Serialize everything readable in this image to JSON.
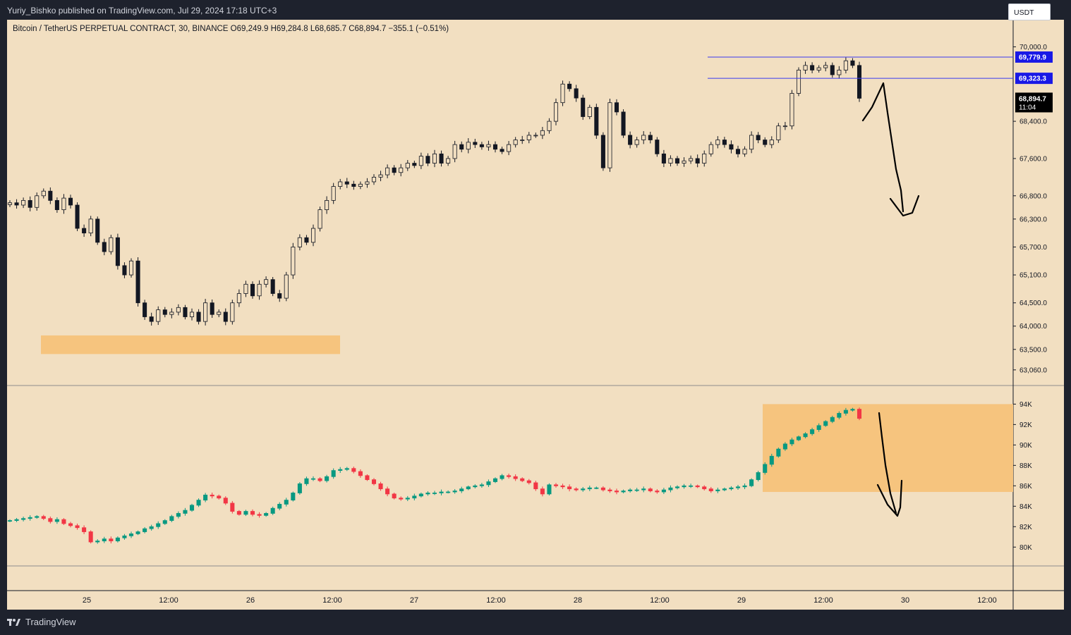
{
  "header": {
    "published": "Yuriy_Bishko published on TradingView.com, Jul 29, 2024 17:18 UTC+3",
    "symbol_info": "Bitcoin / TetherUS PERPETUAL CONTRACT, 30, BINANCE  O69,249.9  H69,284.8  L68,685.7  C68,894.7  −355.1 (−0.51%)"
  },
  "currency_button": "USDT",
  "footer": {
    "brand": "TradingView"
  },
  "colors": {
    "up": "#089981",
    "down": "#f23645",
    "price_body": "#131722",
    "zone": "#f6c47e",
    "hline": "#3a3af0",
    "bg": "#f2dfc1"
  },
  "chart_data": [
    {
      "type": "candlestick",
      "ylim": [
        62800,
        70400
      ],
      "y_ticks": [
        "70,000.0",
        "68,400.0",
        "67,600.0",
        "66,800.0",
        "66,300.0",
        "65,700.0",
        "65,100.0",
        "64,500.0",
        "64,000.0",
        "63,500.0",
        "63,060.0"
      ],
      "x_ticks": [
        "25",
        "12:00",
        "26",
        "12:00",
        "27",
        "12:00",
        "28",
        "12:00",
        "29",
        "12:00",
        "30",
        "12:00"
      ],
      "series": [
        {
          "values": [
            66650,
            66600,
            66700,
            66550,
            66800,
            66900,
            66700,
            66500,
            66750,
            66600,
            66100,
            66000,
            66300,
            65800,
            65600,
            65900,
            65300,
            65100,
            65400,
            64500,
            64200,
            64100,
            64350,
            64250,
            64300,
            64400,
            64200,
            64300,
            64100,
            64500,
            64250,
            64300,
            64100,
            64500,
            64700,
            64900,
            64650,
            64900,
            65000,
            64700,
            64600,
            65100,
            65700,
            65900,
            65800,
            66100,
            66500,
            66700,
            67000,
            67100,
            67050,
            67000,
            67050,
            67100,
            67200,
            67250,
            67400,
            67300,
            67400,
            67500,
            67450,
            67650,
            67500,
            67700,
            67500,
            67600,
            67900,
            67800,
            67950,
            67900,
            67850,
            67900,
            67800,
            67750,
            67900,
            68000,
            68000,
            68100,
            68100,
            68200,
            68400,
            68800,
            69200,
            69100,
            68900,
            68500,
            68700,
            68100,
            67400,
            68800,
            68600,
            68100,
            67900,
            68000,
            68100,
            68000,
            67700,
            67500,
            67600,
            67500,
            67550,
            67600,
            67500,
            67700,
            67900,
            68000,
            67900,
            67800,
            67700,
            67800,
            68100,
            68000,
            67900,
            68000,
            68300,
            68300,
            69000,
            69500,
            69600,
            69500,
            69550,
            69600,
            69400,
            69500,
            69700,
            69600,
            68894.7
          ]
        }
      ],
      "price_labels": [
        {
          "text": "69,779.9",
          "value": 69779.9
        },
        {
          "text": "69,323.3",
          "value": 69323.3
        }
      ],
      "last_price": {
        "text": "68,894.7",
        "countdown": "11:04",
        "value": 68894.7
      },
      "zone": {
        "from": 63400,
        "to": 63800
      }
    },
    {
      "type": "candlestick",
      "ylim": [
        78500,
        95200
      ],
      "y_ticks": [
        "94K",
        "92K",
        "90K",
        "88K",
        "86K",
        "84K",
        "82K",
        "80K"
      ],
      "series": [
        {
          "values": [
            82600,
            82700,
            82800,
            82900,
            83000,
            82800,
            82500,
            82700,
            82300,
            82100,
            81900,
            81500,
            80500,
            80600,
            80800,
            80600,
            80900,
            81100,
            81300,
            81500,
            81800,
            82000,
            82300,
            82600,
            83000,
            83300,
            83600,
            84100,
            84600,
            85100,
            85000,
            84800,
            84300,
            83500,
            83200,
            83500,
            83200,
            83100,
            83300,
            83800,
            84200,
            84600,
            85300,
            86200,
            86700,
            86700,
            86500,
            86900,
            87500,
            87600,
            87700,
            87400,
            87000,
            86600,
            86200,
            85700,
            85200,
            84800,
            84700,
            84800,
            85000,
            85200,
            85300,
            85300,
            85400,
            85400,
            85500,
            85700,
            85900,
            86000,
            86100,
            86400,
            86700,
            87000,
            86900,
            86700,
            86500,
            86300,
            85700,
            85200,
            86100,
            86000,
            85900,
            85700,
            85600,
            85700,
            85800,
            85800,
            85600,
            85500,
            85400,
            85500,
            85600,
            85600,
            85700,
            85500,
            85400,
            85600,
            85800,
            85900,
            86000,
            86000,
            85900,
            85700,
            85500,
            85600,
            85700,
            85800,
            85900,
            86000,
            86600,
            87300,
            88100,
            88900,
            89600,
            90100,
            90500,
            90800,
            91100,
            91500,
            91900,
            92300,
            92700,
            93100,
            93400,
            93500,
            92600
          ]
        }
      ],
      "zone": {
        "from": 85400,
        "to": 94000
      }
    }
  ]
}
